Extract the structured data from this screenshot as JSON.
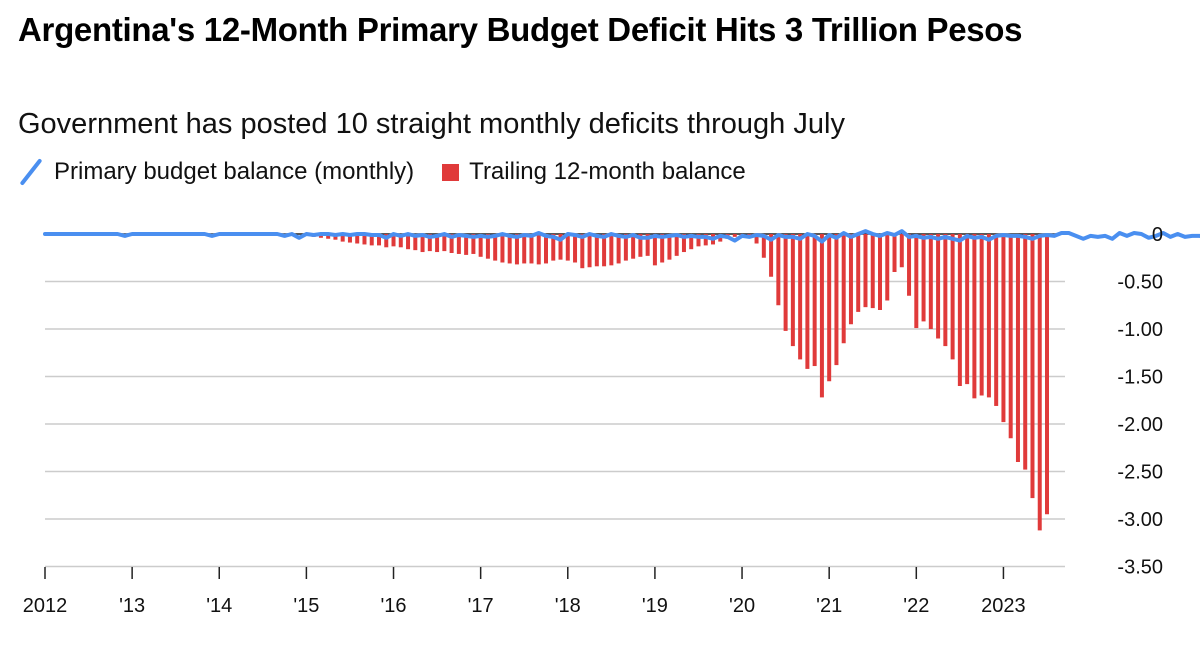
{
  "title": "Argentina's 12-Month Primary Budget Deficit Hits 3 Trillion Pesos",
  "subtitle": "Government has posted 10 straight monthly deficits through July",
  "legend": {
    "line_label": "Primary budget balance (monthly)",
    "bar_label": "Trailing 12-month balance"
  },
  "colors": {
    "line": "#4a8ff0",
    "bar": "#e03a3a",
    "grid": "#cccccc",
    "zero": "#222222"
  },
  "chart_data": {
    "type": "bar",
    "title": "Argentina's 12-Month Primary Budget Deficit Hits 3 Trillion Pesos",
    "subtitle": "Government has posted 10 straight monthly deficits through July",
    "unit": "trillions of pesos",
    "x_start": "2012-01",
    "x_end": "2023-07",
    "xlim": [
      "2012-01",
      "2023-07"
    ],
    "ylim": [
      -3.5,
      0
    ],
    "y_ticks": [
      0,
      -0.5,
      -1.0,
      -1.5,
      -2.0,
      -2.5,
      -3.0,
      -3.5
    ],
    "y_tick_labels": [
      "0",
      "-0.50",
      "-1.00",
      "-1.50",
      "-2.00",
      "-2.50",
      "-3.00",
      "-3.50"
    ],
    "x_ticks": [
      "2012",
      "'13",
      "'14",
      "'15",
      "'16",
      "'17",
      "'18",
      "'19",
      "'20",
      "'21",
      "'22",
      "2023"
    ],
    "grid": true,
    "legend_position": "top-left",
    "series": [
      {
        "name": "Trailing 12-month balance",
        "type": "bar",
        "x": [
          "2015-01",
          "2015-02",
          "2015-03",
          "2015-04",
          "2015-05",
          "2015-06",
          "2015-07",
          "2015-08",
          "2015-09",
          "2015-10",
          "2015-11",
          "2015-12",
          "2016-01",
          "2016-02",
          "2016-03",
          "2016-04",
          "2016-05",
          "2016-06",
          "2016-07",
          "2016-08",
          "2016-09",
          "2016-10",
          "2016-11",
          "2016-12",
          "2017-01",
          "2017-02",
          "2017-03",
          "2017-04",
          "2017-05",
          "2017-06",
          "2017-07",
          "2017-08",
          "2017-09",
          "2017-10",
          "2017-11",
          "2017-12",
          "2018-01",
          "2018-02",
          "2018-03",
          "2018-04",
          "2018-05",
          "2018-06",
          "2018-07",
          "2018-08",
          "2018-09",
          "2018-10",
          "2018-11",
          "2018-12",
          "2019-01",
          "2019-02",
          "2019-03",
          "2019-04",
          "2019-05",
          "2019-06",
          "2019-07",
          "2019-08",
          "2019-09",
          "2019-10",
          "2019-11",
          "2019-12",
          "2020-01",
          "2020-02",
          "2020-03",
          "2020-04",
          "2020-05",
          "2020-06",
          "2020-07",
          "2020-08",
          "2020-09",
          "2020-10",
          "2020-11",
          "2020-12",
          "2021-01",
          "2021-02",
          "2021-03",
          "2021-04",
          "2021-05",
          "2021-06",
          "2021-07",
          "2021-08",
          "2021-09",
          "2021-10",
          "2021-11",
          "2021-12",
          "2022-01",
          "2022-02",
          "2022-03",
          "2022-04",
          "2022-05",
          "2022-06",
          "2022-07",
          "2022-08",
          "2022-09",
          "2022-10",
          "2022-11",
          "2022-12",
          "2023-01",
          "2023-02",
          "2023-03",
          "2023-04",
          "2023-05",
          "2023-06",
          "2023-07"
        ],
        "values": [
          -0.02,
          -0.03,
          -0.04,
          -0.05,
          -0.06,
          -0.08,
          -0.09,
          -0.1,
          -0.11,
          -0.12,
          -0.12,
          -0.14,
          -0.13,
          -0.14,
          -0.16,
          -0.17,
          -0.19,
          -0.18,
          -0.19,
          -0.18,
          -0.2,
          -0.21,
          -0.22,
          -0.21,
          -0.24,
          -0.26,
          -0.28,
          -0.3,
          -0.31,
          -0.32,
          -0.31,
          -0.31,
          -0.32,
          -0.31,
          -0.28,
          -0.27,
          -0.28,
          -0.3,
          -0.36,
          -0.35,
          -0.34,
          -0.34,
          -0.33,
          -0.31,
          -0.28,
          -0.26,
          -0.24,
          -0.23,
          -0.33,
          -0.3,
          -0.27,
          -0.23,
          -0.19,
          -0.16,
          -0.13,
          -0.12,
          -0.11,
          -0.08,
          -0.05,
          -0.03,
          -0.04,
          -0.02,
          -0.1,
          -0.25,
          -0.45,
          -0.75,
          -1.02,
          -1.18,
          -1.32,
          -1.42,
          -1.39,
          -1.72,
          -1.55,
          -1.38,
          -1.15,
          -0.95,
          -0.82,
          -0.77,
          -0.78,
          -0.8,
          -0.7,
          -0.4,
          -0.35,
          -0.65,
          -0.99,
          -0.92,
          -1.0,
          -1.1,
          -1.18,
          -1.32,
          -1.6,
          -1.58,
          -1.73,
          -1.7,
          -1.72,
          -1.81,
          -1.98,
          -2.15,
          -2.4,
          -2.48,
          -2.78,
          -3.12,
          -2.95
        ]
      },
      {
        "name": "Primary budget balance (monthly)",
        "type": "line",
        "x_start": "2012-01",
        "values": [
          0.0,
          0.0,
          0.0,
          0.0,
          0.0,
          0.0,
          0.0,
          0.0,
          0.0,
          0.0,
          0.0,
          -0.02,
          0.0,
          0.0,
          0.0,
          0.0,
          0.0,
          0.0,
          0.0,
          0.0,
          0.0,
          0.0,
          0.0,
          -0.02,
          0.0,
          0.0,
          0.0,
          0.0,
          0.0,
          0.0,
          0.0,
          0.0,
          0.0,
          -0.02,
          0.0,
          -0.04,
          0.0,
          -0.01,
          0.0,
          0.0,
          -0.01,
          0.0,
          -0.01,
          0.0,
          0.0,
          -0.01,
          -0.01,
          -0.04,
          0.0,
          -0.02,
          0.0,
          -0.02,
          -0.01,
          -0.03,
          -0.02,
          0.0,
          -0.03,
          -0.01,
          -0.02,
          -0.03,
          -0.02,
          -0.03,
          -0.02,
          0.0,
          -0.02,
          -0.03,
          -0.01,
          -0.02,
          0.01,
          -0.02,
          -0.03,
          -0.06,
          0.0,
          -0.01,
          -0.03,
          0.0,
          -0.02,
          -0.03,
          0.0,
          -0.02,
          -0.03,
          -0.01,
          -0.04,
          -0.04,
          -0.02,
          -0.03,
          -0.02,
          -0.01,
          -0.03,
          -0.02,
          -0.03,
          -0.03,
          -0.05,
          -0.02,
          -0.03,
          -0.07,
          -0.02,
          -0.03,
          -0.01,
          -0.02,
          -0.06,
          -0.01,
          -0.03,
          -0.03,
          -0.05,
          0.0,
          -0.02,
          -0.08,
          -0.01,
          -0.04,
          0.01,
          -0.03,
          0.0,
          0.03,
          0.0,
          -0.02,
          0.01,
          -0.01,
          0.03,
          -0.03,
          -0.02,
          -0.04,
          -0.03,
          -0.05,
          -0.03,
          -0.05,
          -0.07,
          -0.02,
          -0.04,
          -0.03,
          -0.06,
          -0.02,
          -0.01,
          -0.02,
          -0.02,
          -0.03,
          -0.05,
          -0.02,
          -0.01,
          -0.02,
          0.01,
          0.01,
          -0.02,
          -0.05,
          -0.02,
          -0.03,
          -0.02,
          -0.05,
          0.01,
          -0.02,
          0.01,
          0.0,
          -0.04,
          -0.02,
          0.01,
          -0.03,
          0.0,
          -0.03,
          -0.02,
          -0.02,
          -0.03,
          -0.02,
          -0.03,
          -0.06,
          -0.02,
          0.02,
          0.01,
          0.01,
          0.03,
          0.0,
          -0.04,
          -0.04,
          -0.02,
          -0.02,
          -0.03,
          0.02,
          0.01,
          -0.02,
          0.02,
          -0.04,
          -0.02,
          -0.08,
          -0.1,
          -0.04,
          -0.03,
          0.0,
          0.02,
          0.03,
          0.02,
          0.03,
          0.0,
          -0.04,
          -0.02,
          0.01,
          -0.12,
          -0.05,
          -0.1,
          -0.25,
          -0.24,
          -0.24,
          -0.16,
          -0.08,
          -0.12,
          -0.05,
          -0.1,
          -0.05,
          -0.3,
          -0.05,
          -0.05,
          -0.12,
          0.0,
          -0.05,
          -0.02,
          0.0,
          -0.02,
          -0.06,
          0.15,
          -0.05,
          -0.05,
          -0.25,
          -0.5,
          -0.05,
          -0.08,
          -0.05,
          -0.25,
          -0.05,
          -0.08,
          -0.1,
          -0.05,
          -0.2,
          0.0,
          -0.1,
          0.05,
          -0.1,
          -0.2,
          -0.45,
          -0.2,
          -0.25,
          -0.28,
          -0.2,
          -0.3,
          -0.6,
          -0.28
        ]
      }
    ]
  }
}
